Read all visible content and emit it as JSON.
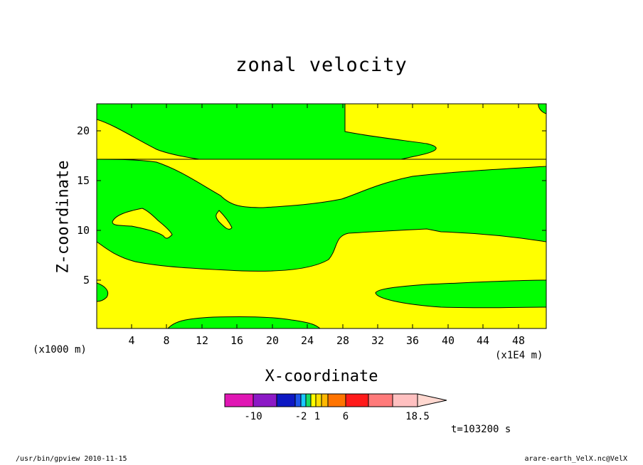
{
  "chart_data": {
    "type": "contour",
    "title": "zonal velocity",
    "xlabel": "X-coordinate",
    "ylabel": "Z-coordinate",
    "x_scale_label_left": "(x1000 m)",
    "x_scale_label_right": "(x1E4 m)",
    "xlim": [
      0,
      51.3
    ],
    "ylim": [
      0.3,
      22.8
    ],
    "x_ticks": [
      "4",
      "8",
      "12",
      "16",
      "20",
      "24",
      "28",
      "32",
      "36",
      "40",
      "44",
      "48"
    ],
    "y_ticks": [
      "5",
      "10",
      "15",
      "20"
    ],
    "fill_colors": {
      "low": "#00ff00",
      "high": "#ffff00"
    },
    "colorbar": {
      "colors": [
        "#e016b4",
        "#8c19c6",
        "#0d18c3",
        "#1e55ec",
        "#19c8ff",
        "#16dc64",
        "#ffff00",
        "#ffe000",
        "#ffb800",
        "#ff7400",
        "#ff1a1a",
        "#ff7a7a",
        "#ffc0c0",
        "#ffd8d0"
      ],
      "labels": [
        "-10",
        "-2",
        "1",
        "6",
        "18.5"
      ]
    },
    "annotation": "t=103200 s"
  },
  "footer": {
    "left": "/usr/bin/gpview   2010-11-15",
    "right": "arare-earth_VelX.nc@VelX"
  }
}
